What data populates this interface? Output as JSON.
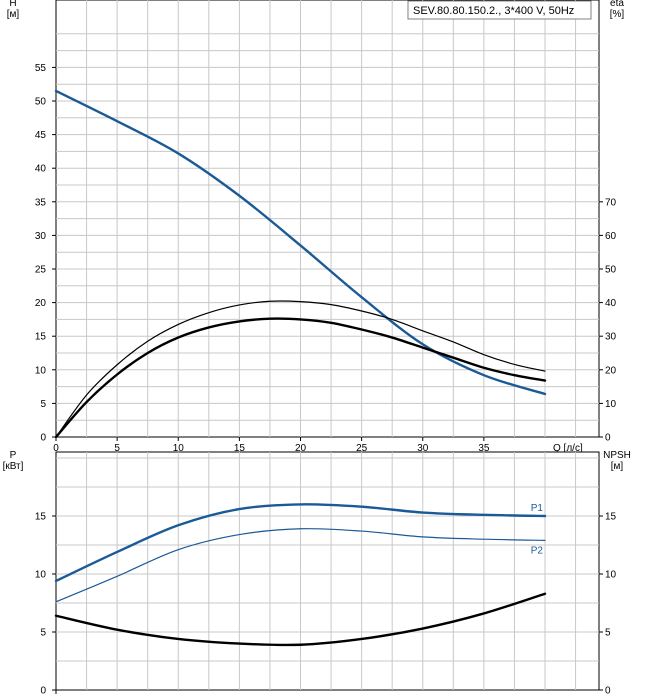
{
  "legend": {
    "model": "SEV.80.80.150.2., 3*400 V, 50Hz"
  },
  "colors": {
    "grid": "#c8c8c8",
    "axis": "#000000",
    "blue": "#1a5a96",
    "black": "#000000"
  },
  "chart_data": [
    {
      "type": "line",
      "panel": "top",
      "xlabel": "Q [л/с]",
      "ylabel": "H\n[м]",
      "y2label": "eta\n[%]",
      "xlim": [
        0,
        40
      ],
      "xticks": [
        0,
        5,
        10,
        15,
        20,
        25,
        30,
        35
      ],
      "ylim": [
        0,
        60
      ],
      "yticks": [
        0,
        5,
        10,
        15,
        20,
        25,
        30,
        35,
        40,
        45,
        50,
        55
      ],
      "y2lim": [
        0,
        120
      ],
      "y2ticks": [
        0,
        10,
        20,
        30,
        40,
        50,
        60,
        70
      ],
      "grid": true,
      "series": [
        {
          "axis": "y",
          "color": "blue",
          "width": 2.4,
          "x": [
            0,
            5,
            10,
            15,
            20,
            25,
            30,
            35,
            40
          ],
          "y": [
            51.5,
            47.0,
            42.2,
            35.9,
            28.5,
            20.8,
            13.8,
            9.2,
            6.4
          ]
        },
        {
          "axis": "y",
          "color": "black",
          "width": 2.4,
          "x": [
            0,
            2.5,
            5,
            7.5,
            10,
            12.5,
            15,
            17.5,
            20,
            22.5,
            25,
            27.5,
            30,
            32.5,
            35,
            37.5,
            40
          ],
          "y": [
            0,
            5.2,
            9.3,
            12.5,
            14.8,
            16.3,
            17.2,
            17.6,
            17.5,
            17.0,
            16.0,
            14.8,
            13.3,
            11.8,
            10.3,
            9.2,
            8.4
          ]
        },
        {
          "axis": "y2",
          "color": "black",
          "width": 1.2,
          "x": [
            0,
            2.5,
            5,
            7.5,
            10,
            12.5,
            15,
            17.5,
            20,
            22.5,
            25,
            27.5,
            30,
            32.5,
            35,
            37.5,
            40
          ],
          "y": [
            0,
            12.5,
            21.5,
            28.5,
            33.5,
            37.0,
            39.3,
            40.4,
            40.3,
            39.4,
            37.5,
            35.0,
            31.6,
            28.3,
            24.5,
            21.6,
            19.6
          ]
        }
      ]
    },
    {
      "type": "line",
      "panel": "bottom",
      "ylabel": "P\n[кВт]",
      "y2label": "NPSH\n[м]",
      "xlim": [
        0,
        40
      ],
      "ylim": [
        0,
        20.5
      ],
      "yticks": [
        0,
        5,
        10,
        15
      ],
      "y2lim": [
        0,
        20.5
      ],
      "y2ticks": [
        0,
        5,
        10,
        15
      ],
      "grid": true,
      "series": [
        {
          "name": "P1",
          "axis": "y",
          "color": "blue",
          "width": 2.4,
          "x": [
            0,
            5,
            10,
            15,
            20,
            25,
            30,
            35,
            40
          ],
          "y": [
            9.4,
            11.9,
            14.2,
            15.6,
            16.0,
            15.8,
            15.3,
            15.1,
            15.0
          ]
        },
        {
          "name": "P2",
          "axis": "y",
          "color": "blue",
          "width": 1.2,
          "x": [
            0,
            5,
            10,
            15,
            20,
            25,
            30,
            35,
            40
          ],
          "y": [
            7.6,
            9.8,
            12.1,
            13.4,
            13.9,
            13.7,
            13.2,
            13.0,
            12.9
          ]
        },
        {
          "axis": "y2",
          "color": "black",
          "width": 2.4,
          "x": [
            0,
            5,
            10,
            15,
            20,
            25,
            30,
            35,
            40
          ],
          "y": [
            6.4,
            5.2,
            4.4,
            4.0,
            3.9,
            4.4,
            5.3,
            6.6,
            8.3
          ]
        }
      ]
    }
  ]
}
